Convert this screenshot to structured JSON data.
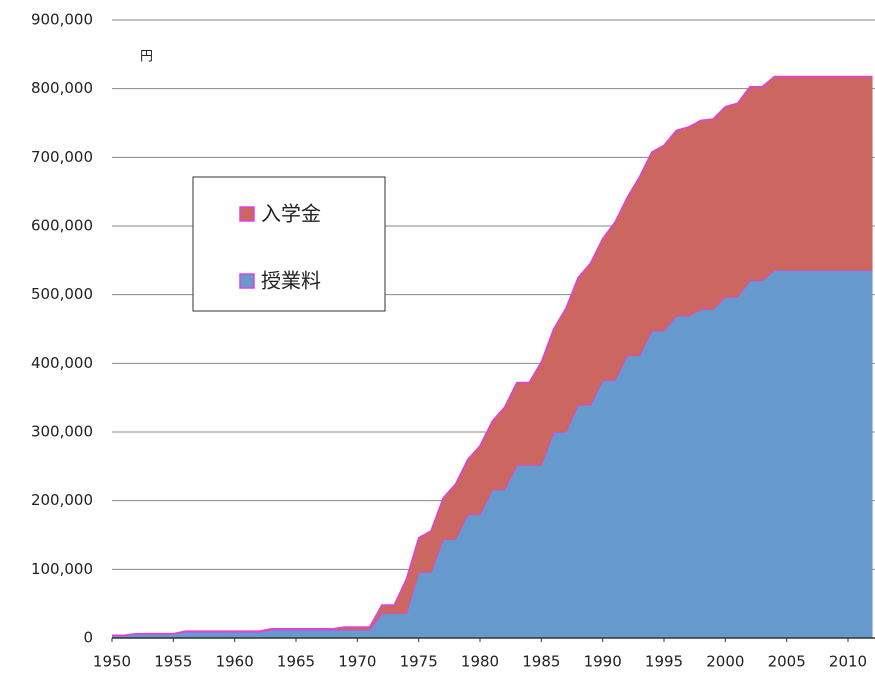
{
  "chart_data": {
    "type": "area",
    "stacked": true,
    "y_unit": "円",
    "x": [
      1950,
      1951,
      1952,
      1953,
      1954,
      1955,
      1956,
      1957,
      1958,
      1959,
      1960,
      1961,
      1962,
      1963,
      1964,
      1965,
      1966,
      1967,
      1968,
      1969,
      1970,
      1971,
      1972,
      1973,
      1974,
      1975,
      1976,
      1977,
      1978,
      1979,
      1980,
      1981,
      1982,
      1983,
      1984,
      1985,
      1986,
      1987,
      1988,
      1989,
      1990,
      1991,
      1992,
      1993,
      1994,
      1995,
      1996,
      1997,
      1998,
      1999,
      2000,
      2001,
      2002,
      2003,
      2004,
      2005,
      2006,
      2007,
      2008,
      2009,
      2010,
      2011,
      2012
    ],
    "series": [
      {
        "name": "授業料",
        "color": "#6699cc",
        "values": [
          3600,
          3600,
          6000,
          6000,
          6000,
          6000,
          9000,
          9000,
          9000,
          9000,
          9000,
          9000,
          9000,
          12000,
          12000,
          12000,
          12000,
          12000,
          12000,
          12000,
          12000,
          12000,
          36000,
          36000,
          36000,
          96000,
          96000,
          144000,
          144000,
          180000,
          180000,
          216000,
          216000,
          252000,
          252000,
          252000,
          300000,
          300000,
          339600,
          339600,
          375600,
          375600,
          411600,
          411600,
          447600,
          447600,
          469200,
          469200,
          478800,
          478800,
          496800,
          496800,
          520800,
          520800,
          535800,
          535800,
          535800,
          535800,
          535800,
          535800,
          535800,
          535800,
          535800
        ]
      },
      {
        "name": "入学金",
        "color": "#cc6660",
        "values": [
          400,
          400,
          400,
          400,
          400,
          400,
          1000,
          1000,
          1000,
          1000,
          1000,
          1000,
          1000,
          1500,
          1500,
          1500,
          1500,
          1500,
          1500,
          4000,
          4000,
          4000,
          12000,
          12000,
          50000,
          50000,
          60000,
          60000,
          80000,
          80000,
          100000,
          100000,
          120000,
          120000,
          120000,
          150000,
          150000,
          180000,
          185400,
          206000,
          206000,
          230000,
          230000,
          260000,
          260000,
          270000,
          270000,
          275000,
          275000,
          277000,
          277000,
          282000,
          282000,
          282000,
          282000,
          282000,
          282000,
          282000,
          282000,
          282000,
          282000,
          282000,
          282000
        ]
      }
    ],
    "edge_color": "#e040e0",
    "xlim": [
      1950,
      2012.2
    ],
    "xticks": [
      1950,
      1955,
      1960,
      1965,
      1970,
      1975,
      1980,
      1985,
      1990,
      1995,
      2000,
      2005,
      2010
    ],
    "ylim": [
      0,
      900000
    ],
    "yticks": [
      0,
      {
        "value": 100000,
        "label": "100,000"
      },
      {
        "value": 200000,
        "label": "200,000"
      },
      {
        "value": 300000,
        "label": "300,000"
      },
      {
        "value": 400000,
        "label": "400,000"
      },
      {
        "value": 500000,
        "label": "500,000"
      },
      {
        "value": 600000,
        "label": "600,000"
      },
      {
        "value": 700000,
        "label": "700,000"
      },
      {
        "value": 800000,
        "label": "800,000"
      },
      {
        "value": 900000,
        "label": "900,000"
      }
    ],
    "grid": true
  }
}
